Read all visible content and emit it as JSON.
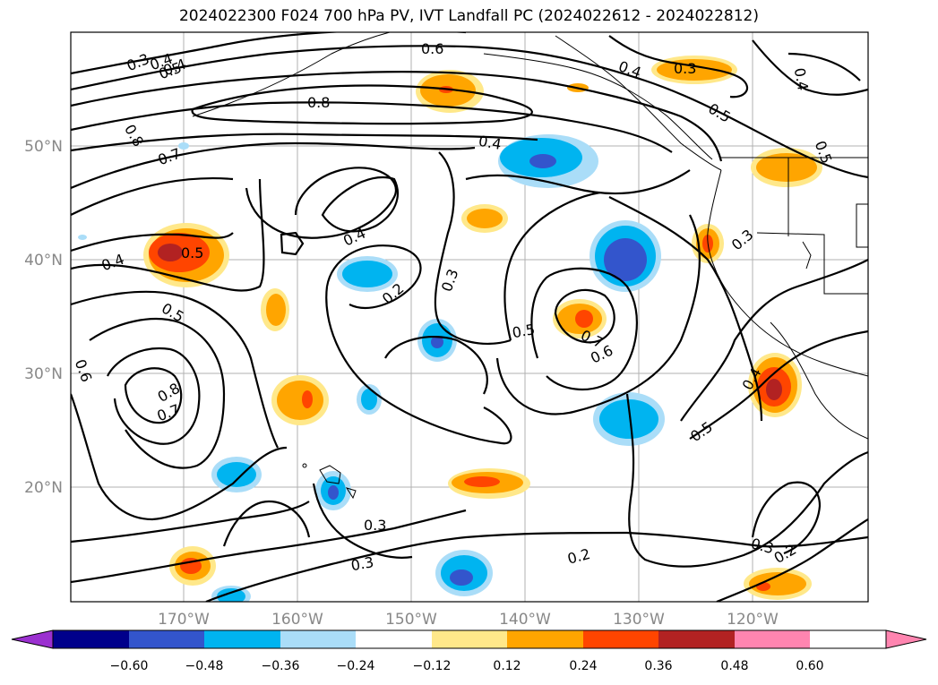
{
  "title": "2024022300 F024 700 hPa PV, IVT Landfall PC (2024022612 - 2024022812)",
  "map": {
    "lat_labels": [
      "50°N",
      "40°N",
      "30°N",
      "20°N"
    ],
    "lon_labels": [
      "170°W",
      "160°W",
      "150°W",
      "140°W",
      "130°W",
      "120°W"
    ],
    "contour_labels": [
      "0.3",
      "0.4",
      "0.5",
      "0.6",
      "0.4",
      "0.3",
      "0.4",
      "0.5",
      "0.8",
      "0.8",
      "0.7",
      "0.4",
      "0.5",
      "0.4",
      "0.4",
      "0.2",
      "0.3",
      "0.5",
      "0.7",
      "0.6",
      "0.5",
      "0.6",
      "0.8",
      "0.7",
      "0.4",
      "0.3",
      "0.5",
      "0.3",
      "0.3",
      "0.2",
      "0.3",
      "0.2",
      "0.4",
      "0.5"
    ]
  },
  "colorbar": {
    "colors": [
      "#9b30d0",
      "#00008b",
      "#3355cc",
      "#00b4f0",
      "#aaddf8",
      "#ffffff",
      "#ffe88a",
      "#ffa500",
      "#ff4500",
      "#b22222",
      "#ff85b0"
    ],
    "ticks": [
      "−0.60",
      "−0.48",
      "−0.36",
      "−0.24",
      "−0.12",
      "0.12",
      "0.24",
      "0.36",
      "0.48",
      "0.60"
    ]
  }
}
